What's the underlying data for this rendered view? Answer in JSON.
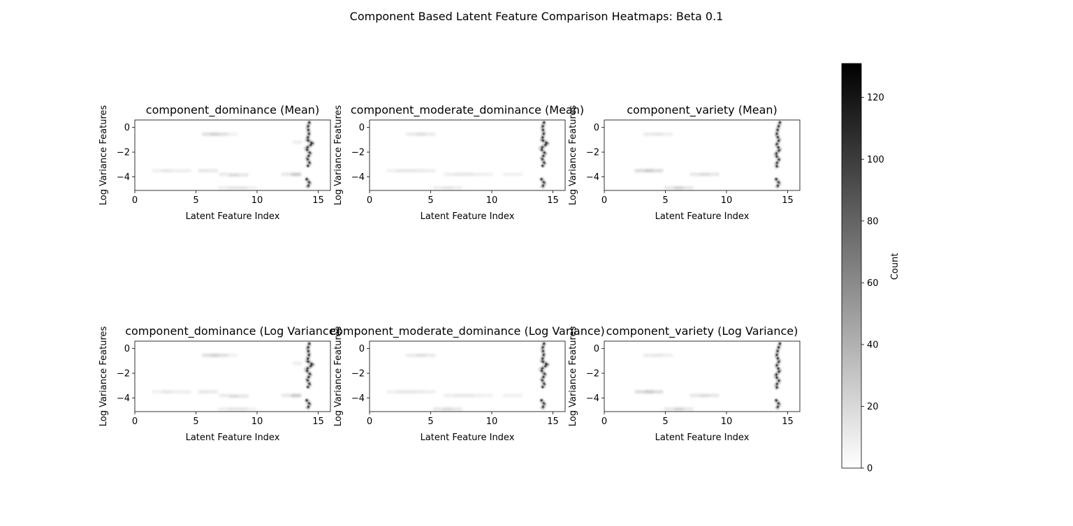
{
  "figure": {
    "title": "Component Based Latent Feature Comparison Heatmaps: Beta 0.1"
  },
  "colorbar": {
    "label": "Count",
    "range": [
      0,
      131
    ],
    "ticks": [
      0,
      20,
      40,
      60,
      80,
      100,
      120
    ],
    "colormap": "greys",
    "colors": [
      "#ffffff",
      "#000000"
    ]
  },
  "chart_data": [
    {
      "type": "heatmap",
      "title": "component_dominance (Mean)",
      "xlabel": "Latent Feature Index",
      "ylabel": "Log Variance Features",
      "xlim": [
        0,
        16
      ],
      "ylim": [
        -5.1,
        0.6
      ],
      "xticks": [
        0,
        5,
        10,
        15
      ],
      "yticks": [
        0,
        -2,
        -4
      ],
      "cells": [
        {
          "x": 5.9,
          "y": -0.55,
          "v": 18
        },
        {
          "x": 6.6,
          "y": -0.55,
          "v": 25
        },
        {
          "x": 7.3,
          "y": -0.55,
          "v": 18
        },
        {
          "x": 8.0,
          "y": -0.55,
          "v": 8
        },
        {
          "x": 1.8,
          "y": -3.5,
          "v": 8
        },
        {
          "x": 2.6,
          "y": -3.5,
          "v": 14
        },
        {
          "x": 3.4,
          "y": -3.5,
          "v": 10
        },
        {
          "x": 4.2,
          "y": -3.5,
          "v": 10
        },
        {
          "x": 5.6,
          "y": -3.5,
          "v": 14
        },
        {
          "x": 6.4,
          "y": -3.5,
          "v": 12
        },
        {
          "x": 7.3,
          "y": -3.8,
          "v": 12
        },
        {
          "x": 8.1,
          "y": -3.85,
          "v": 20
        },
        {
          "x": 8.9,
          "y": -3.85,
          "v": 14
        },
        {
          "x": 7.2,
          "y": -4.9,
          "v": 10
        },
        {
          "x": 8.0,
          "y": -4.9,
          "v": 15
        },
        {
          "x": 8.8,
          "y": -4.9,
          "v": 15
        },
        {
          "x": 9.6,
          "y": -4.9,
          "v": 8
        },
        {
          "x": 12.4,
          "y": -3.8,
          "v": 14
        },
        {
          "x": 13.2,
          "y": -3.8,
          "v": 30
        },
        {
          "x": 13.3,
          "y": -1.2,
          "v": 10
        }
      ],
      "ridge": [
        [
          14.3,
          0.5
        ],
        [
          14.15,
          0.0
        ],
        [
          14.25,
          -0.5
        ],
        [
          14.1,
          -1.0
        ],
        [
          14.55,
          -1.3
        ],
        [
          14.0,
          -1.7
        ],
        [
          14.35,
          -2.1
        ],
        [
          14.1,
          -2.5
        ],
        [
          14.3,
          -2.9
        ],
        [
          14.1,
          -3.2
        ]
      ],
      "ridge2": [
        [
          14.0,
          -4.1
        ],
        [
          14.3,
          -4.5
        ],
        [
          14.1,
          -4.9
        ]
      ]
    },
    {
      "type": "heatmap",
      "title": "component_moderate_dominance (Mean)",
      "xlabel": "Latent Feature Index",
      "ylabel": "Log Variance Features",
      "xlim": [
        0,
        16
      ],
      "ylim": [
        -5.1,
        0.6
      ],
      "xticks": [
        0,
        5,
        10,
        15
      ],
      "yticks": [
        0,
        -2,
        -4
      ],
      "cells": [
        {
          "x": 3.4,
          "y": -0.55,
          "v": 12
        },
        {
          "x": 4.2,
          "y": -0.55,
          "v": 18
        },
        {
          "x": 5.0,
          "y": -0.55,
          "v": 12
        },
        {
          "x": 1.8,
          "y": -3.5,
          "v": 8
        },
        {
          "x": 2.6,
          "y": -3.5,
          "v": 14
        },
        {
          "x": 3.4,
          "y": -3.5,
          "v": 14
        },
        {
          "x": 4.2,
          "y": -3.5,
          "v": 12
        },
        {
          "x": 5.0,
          "y": -3.5,
          "v": 10
        },
        {
          "x": 6.5,
          "y": -3.8,
          "v": 10
        },
        {
          "x": 7.3,
          "y": -3.8,
          "v": 14
        },
        {
          "x": 8.1,
          "y": -3.8,
          "v": 14
        },
        {
          "x": 8.9,
          "y": -3.8,
          "v": 10
        },
        {
          "x": 9.7,
          "y": -3.8,
          "v": 8
        },
        {
          "x": 11.3,
          "y": -3.8,
          "v": 8
        },
        {
          "x": 12.1,
          "y": -3.8,
          "v": 8
        },
        {
          "x": 5.6,
          "y": -4.9,
          "v": 10
        },
        {
          "x": 6.4,
          "y": -4.9,
          "v": 15
        },
        {
          "x": 7.2,
          "y": -4.9,
          "v": 10
        }
      ],
      "ridge": [
        [
          14.3,
          0.5
        ],
        [
          14.15,
          0.0
        ],
        [
          14.25,
          -0.5
        ],
        [
          14.1,
          -1.0
        ],
        [
          14.55,
          -1.3
        ],
        [
          14.0,
          -1.7
        ],
        [
          14.35,
          -2.1
        ],
        [
          14.1,
          -2.5
        ],
        [
          14.3,
          -2.9
        ],
        [
          14.1,
          -3.2
        ]
      ],
      "ridge2": [
        [
          14.0,
          -4.1
        ],
        [
          14.3,
          -4.5
        ],
        [
          14.1,
          -4.9
        ]
      ]
    },
    {
      "type": "heatmap",
      "title": "component_variety (Mean)",
      "xlabel": "Latent Feature Index",
      "ylabel": "Log Variance Features",
      "xlim": [
        0,
        16
      ],
      "ylim": [
        -5.1,
        0.6
      ],
      "xticks": [
        0,
        5,
        10,
        15
      ],
      "yticks": [
        0,
        -2,
        -4
      ],
      "cells": [
        {
          "x": 3.6,
          "y": -0.55,
          "v": 12
        },
        {
          "x": 4.4,
          "y": -0.55,
          "v": 14
        },
        {
          "x": 5.2,
          "y": -0.55,
          "v": 10
        },
        {
          "x": 2.9,
          "y": -3.5,
          "v": 20
        },
        {
          "x": 3.7,
          "y": -3.5,
          "v": 30
        },
        {
          "x": 4.4,
          "y": -3.5,
          "v": 20
        },
        {
          "x": 7.4,
          "y": -3.8,
          "v": 14
        },
        {
          "x": 8.2,
          "y": -3.8,
          "v": 20
        },
        {
          "x": 9.0,
          "y": -3.8,
          "v": 14
        },
        {
          "x": 5.3,
          "y": -4.9,
          "v": 14
        },
        {
          "x": 6.1,
          "y": -4.9,
          "v": 25
        },
        {
          "x": 6.9,
          "y": -4.9,
          "v": 14
        }
      ],
      "ridge": [
        [
          14.4,
          0.5
        ],
        [
          14.2,
          -0.1
        ],
        [
          14.1,
          -0.6
        ],
        [
          14.3,
          -1.0
        ],
        [
          14.1,
          -1.4
        ],
        [
          14.35,
          -1.8
        ],
        [
          14.0,
          -2.2
        ],
        [
          14.3,
          -2.6
        ],
        [
          14.05,
          -3.0
        ],
        [
          14.2,
          -3.3
        ]
      ],
      "ridge2": [
        [
          14.0,
          -4.1
        ],
        [
          14.3,
          -4.5
        ],
        [
          14.1,
          -4.9
        ]
      ]
    },
    {
      "type": "heatmap",
      "title": "component_dominance (Log Variance)",
      "xlabel": "Latent Feature Index",
      "ylabel": "Log Variance Features",
      "xlim": [
        0,
        16
      ],
      "ylim": [
        -5.1,
        0.6
      ],
      "xticks": [
        0,
        5,
        10,
        15
      ],
      "yticks": [
        0,
        -2,
        -4
      ],
      "cells": [
        {
          "x": 5.9,
          "y": -0.55,
          "v": 18
        },
        {
          "x": 6.6,
          "y": -0.55,
          "v": 25
        },
        {
          "x": 7.3,
          "y": -0.55,
          "v": 18
        },
        {
          "x": 8.0,
          "y": -0.55,
          "v": 8
        },
        {
          "x": 1.8,
          "y": -3.5,
          "v": 8
        },
        {
          "x": 2.6,
          "y": -3.5,
          "v": 14
        },
        {
          "x": 3.4,
          "y": -3.5,
          "v": 10
        },
        {
          "x": 4.2,
          "y": -3.5,
          "v": 10
        },
        {
          "x": 5.6,
          "y": -3.5,
          "v": 14
        },
        {
          "x": 6.4,
          "y": -3.5,
          "v": 12
        },
        {
          "x": 7.3,
          "y": -3.8,
          "v": 12
        },
        {
          "x": 8.1,
          "y": -3.85,
          "v": 20
        },
        {
          "x": 8.9,
          "y": -3.85,
          "v": 14
        },
        {
          "x": 7.2,
          "y": -4.9,
          "v": 10
        },
        {
          "x": 8.0,
          "y": -4.9,
          "v": 15
        },
        {
          "x": 8.8,
          "y": -4.9,
          "v": 15
        },
        {
          "x": 9.6,
          "y": -4.9,
          "v": 8
        },
        {
          "x": 12.4,
          "y": -3.8,
          "v": 14
        },
        {
          "x": 13.2,
          "y": -3.8,
          "v": 30
        },
        {
          "x": 13.3,
          "y": -1.2,
          "v": 10
        }
      ],
      "ridge": [
        [
          14.3,
          0.5
        ],
        [
          14.15,
          0.0
        ],
        [
          14.25,
          -0.5
        ],
        [
          14.1,
          -1.0
        ],
        [
          14.55,
          -1.3
        ],
        [
          14.0,
          -1.7
        ],
        [
          14.35,
          -2.1
        ],
        [
          14.1,
          -2.5
        ],
        [
          14.3,
          -2.9
        ],
        [
          14.1,
          -3.2
        ]
      ],
      "ridge2": [
        [
          14.0,
          -4.1
        ],
        [
          14.3,
          -4.5
        ],
        [
          14.1,
          -4.9
        ]
      ]
    },
    {
      "type": "heatmap",
      "title": "component_moderate_dominance (Log Variance)",
      "xlabel": "Latent Feature Index",
      "ylabel": "Log Variance Features",
      "xlim": [
        0,
        16
      ],
      "ylim": [
        -5.1,
        0.6
      ],
      "xticks": [
        0,
        5,
        10,
        15
      ],
      "yticks": [
        0,
        -2,
        -4
      ],
      "cells": [
        {
          "x": 3.4,
          "y": -0.55,
          "v": 12
        },
        {
          "x": 4.2,
          "y": -0.55,
          "v": 18
        },
        {
          "x": 5.0,
          "y": -0.55,
          "v": 12
        },
        {
          "x": 1.8,
          "y": -3.5,
          "v": 8
        },
        {
          "x": 2.6,
          "y": -3.5,
          "v": 14
        },
        {
          "x": 3.4,
          "y": -3.5,
          "v": 14
        },
        {
          "x": 4.2,
          "y": -3.5,
          "v": 12
        },
        {
          "x": 5.0,
          "y": -3.5,
          "v": 10
        },
        {
          "x": 6.5,
          "y": -3.8,
          "v": 10
        },
        {
          "x": 7.3,
          "y": -3.8,
          "v": 14
        },
        {
          "x": 8.1,
          "y": -3.8,
          "v": 14
        },
        {
          "x": 8.9,
          "y": -3.8,
          "v": 10
        },
        {
          "x": 9.7,
          "y": -3.8,
          "v": 8
        },
        {
          "x": 11.3,
          "y": -3.8,
          "v": 8
        },
        {
          "x": 12.1,
          "y": -3.8,
          "v": 8
        },
        {
          "x": 5.6,
          "y": -4.9,
          "v": 14
        },
        {
          "x": 6.4,
          "y": -4.9,
          "v": 20
        },
        {
          "x": 7.2,
          "y": -4.9,
          "v": 14
        }
      ],
      "ridge": [
        [
          14.3,
          0.5
        ],
        [
          14.15,
          0.0
        ],
        [
          14.25,
          -0.5
        ],
        [
          14.1,
          -1.0
        ],
        [
          14.55,
          -1.3
        ],
        [
          14.0,
          -1.7
        ],
        [
          14.35,
          -2.1
        ],
        [
          14.1,
          -2.5
        ],
        [
          14.3,
          -2.9
        ],
        [
          14.1,
          -3.2
        ]
      ],
      "ridge2": [
        [
          14.0,
          -4.1
        ],
        [
          14.3,
          -4.5
        ],
        [
          14.1,
          -4.9
        ]
      ]
    },
    {
      "type": "heatmap",
      "title": "component_variety (Log Variance)",
      "xlabel": "Latent Feature Index",
      "ylabel": "Log Variance Features",
      "xlim": [
        0,
        16
      ],
      "ylim": [
        -5.1,
        0.6
      ],
      "xticks": [
        0,
        5,
        10,
        15
      ],
      "yticks": [
        0,
        -2,
        -4
      ],
      "cells": [
        {
          "x": 3.6,
          "y": -0.55,
          "v": 12
        },
        {
          "x": 4.4,
          "y": -0.55,
          "v": 14
        },
        {
          "x": 5.2,
          "y": -0.55,
          "v": 10
        },
        {
          "x": 2.9,
          "y": -3.5,
          "v": 20
        },
        {
          "x": 3.7,
          "y": -3.5,
          "v": 30
        },
        {
          "x": 4.4,
          "y": -3.5,
          "v": 20
        },
        {
          "x": 7.4,
          "y": -3.8,
          "v": 14
        },
        {
          "x": 8.2,
          "y": -3.8,
          "v": 20
        },
        {
          "x": 9.0,
          "y": -3.8,
          "v": 14
        },
        {
          "x": 5.3,
          "y": -4.9,
          "v": 14
        },
        {
          "x": 6.1,
          "y": -4.9,
          "v": 25
        },
        {
          "x": 6.9,
          "y": -4.9,
          "v": 14
        }
      ],
      "ridge": [
        [
          14.4,
          0.5
        ],
        [
          14.2,
          -0.1
        ],
        [
          14.1,
          -0.6
        ],
        [
          14.3,
          -1.0
        ],
        [
          14.1,
          -1.4
        ],
        [
          14.35,
          -1.8
        ],
        [
          14.0,
          -2.2
        ],
        [
          14.3,
          -2.6
        ],
        [
          14.05,
          -3.0
        ],
        [
          14.2,
          -3.3
        ]
      ],
      "ridge2": [
        [
          14.0,
          -4.1
        ],
        [
          14.3,
          -4.5
        ],
        [
          14.1,
          -4.9
        ]
      ]
    }
  ]
}
